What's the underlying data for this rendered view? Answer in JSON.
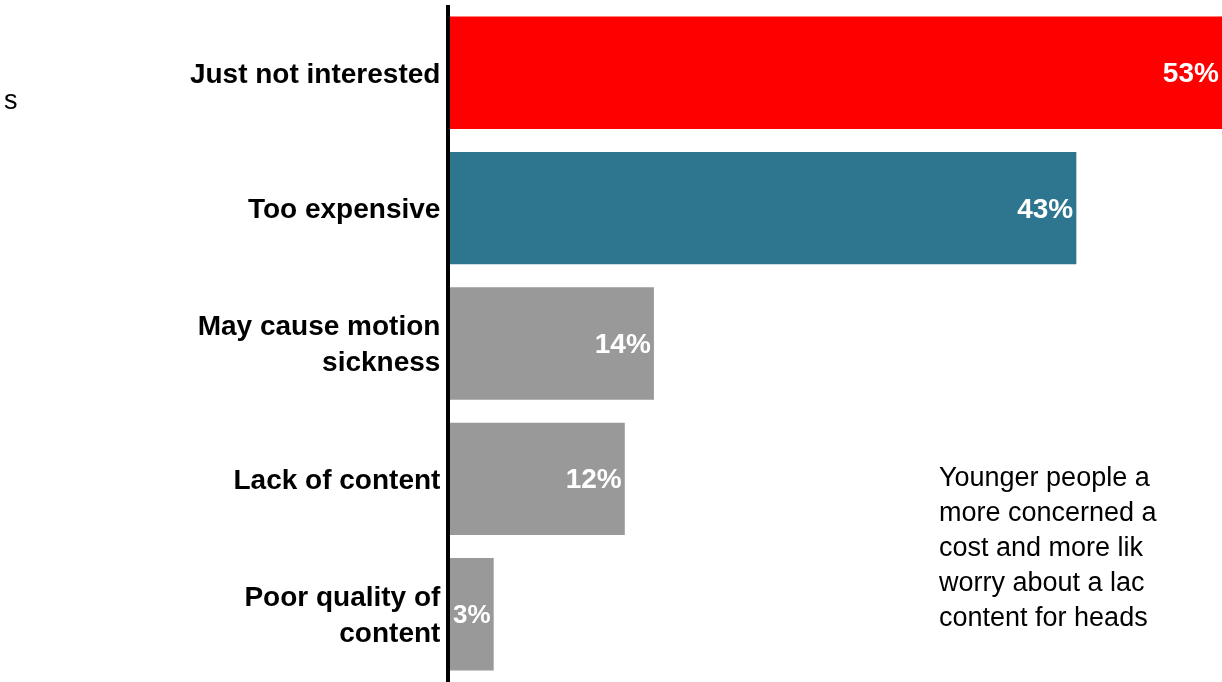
{
  "chart_data": {
    "type": "bar",
    "orientation": "horizontal",
    "categories": [
      "Just not interested",
      "Too expensive",
      "May cause motion sickness",
      "Lack of content",
      "Poor quality of content"
    ],
    "values": [
      53,
      43,
      14,
      12,
      3
    ],
    "value_labels": [
      "53%",
      "43%",
      "14%",
      "12%",
      "3%"
    ],
    "colors": [
      "#ff0000",
      "#2e758f",
      "#999999",
      "#999999",
      "#999999"
    ],
    "annotations": [
      "s",
      "Younger people a\nmore concerned a\ncost and more lik\nworry about a lac\ncontent for heads"
    ]
  }
}
